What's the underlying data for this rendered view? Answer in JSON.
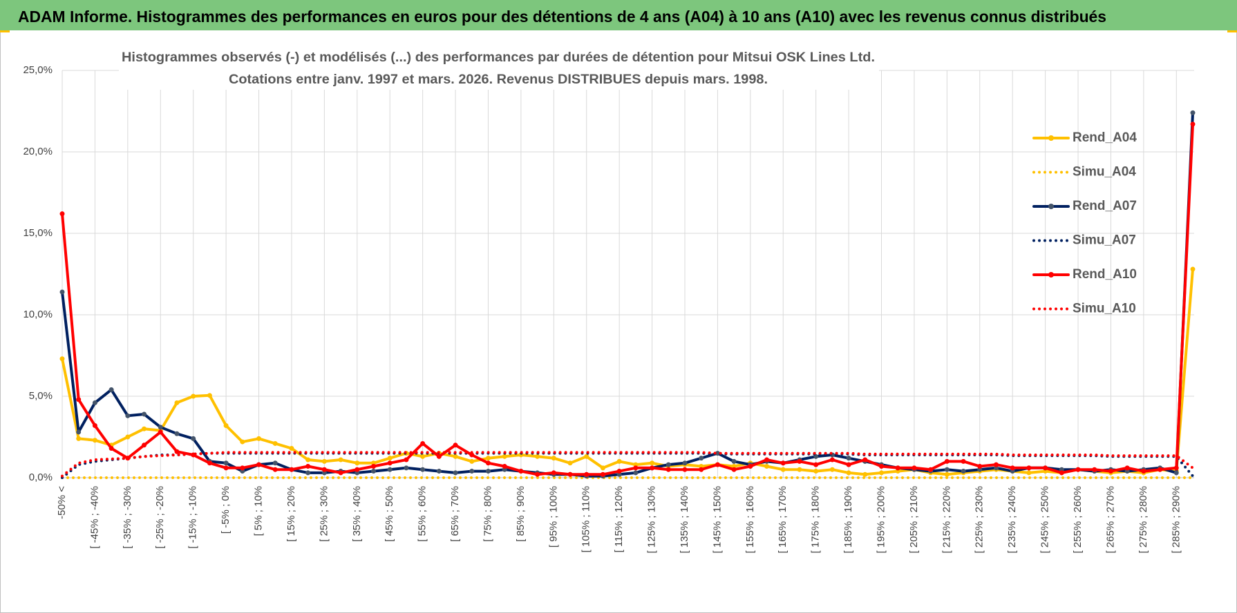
{
  "chart_data": {
    "type": "line",
    "page_title": "ADAM Informe. Histogrammes des performances en euros pour des détentions de 4 ans (A04) à 10 ans (A10) avec les revenus connus distribués",
    "title": "Histogrammes observés (-) et modélisés (...) des performances par durées de détention pour Mitsui OSK Lines Ltd.",
    "subtitle": "Cotations entre janv. 1997 et mars. 2026.  Revenus DISTRIBUES depuis mars. 1998.",
    "categories": [
      "-50% <",
      null,
      "[ -45% ; -40%",
      null,
      "[ -35% ; -30%",
      null,
      "[ -25% ; -20%",
      null,
      "[ -15% ; -10%",
      null,
      "[ -5% ; 0%",
      null,
      "[ 5% ; 10%",
      null,
      "[ 15% ; 20%",
      null,
      "[ 25% ; 30%",
      null,
      "[ 35% ; 40%",
      null,
      "[ 45% ; 50%",
      null,
      "[ 55% ; 60%",
      null,
      "[ 65% ; 70%",
      null,
      "[ 75% ; 80%",
      null,
      "[ 85% ; 90%",
      null,
      "[ 95% ; 100%",
      null,
      "[ 105% ; 110%",
      null,
      "[ 115% ; 120%",
      null,
      "[ 125% ; 130%",
      null,
      "[ 135% ; 140%",
      null,
      "[ 145% ; 150%",
      null,
      "[ 155% ; 160%",
      null,
      "[ 165% ; 170%",
      null,
      "[ 175% ; 180%",
      null,
      "[ 185% ; 190%",
      null,
      "[ 195% ; 200%",
      null,
      "[ 205% ; 210%",
      null,
      "[ 215% ; 220%",
      null,
      "[ 225% ; 230%",
      null,
      "[ 235% ; 240%",
      null,
      "[ 245% ; 250%",
      null,
      "[ 255% ; 260%",
      null,
      "[ 265% ; 270%",
      null,
      "[ 275% ; 280%",
      null,
      "[ 285% ; 290%",
      null
    ],
    "series": [
      {
        "name": "Rend_A04",
        "color": "#ffc000",
        "line_style": "solid",
        "markers": true,
        "values": [
          7.3,
          2.4,
          2.3,
          2.0,
          2.5,
          3.0,
          2.9,
          4.6,
          5.0,
          5.05,
          3.2,
          2.2,
          2.4,
          2.1,
          1.8,
          1.1,
          1.0,
          1.1,
          0.9,
          0.9,
          1.2,
          1.5,
          1.3,
          1.5,
          1.3,
          1.0,
          1.2,
          1.3,
          1.4,
          1.3,
          1.2,
          0.9,
          1.3,
          0.6,
          1.0,
          0.8,
          0.9,
          0.7,
          0.8,
          0.7,
          0.8,
          0.7,
          0.9,
          0.7,
          0.5,
          0.5,
          0.4,
          0.5,
          0.3,
          0.2,
          0.3,
          0.4,
          0.5,
          0.3,
          0.2,
          0.3,
          0.4,
          0.5,
          0.4,
          0.3,
          0.4,
          0.3,
          0.5,
          0.4,
          0.3,
          0.4,
          0.3,
          0.5,
          0.4,
          12.8
        ]
      },
      {
        "name": "Simu_A04",
        "color": "#ffc000",
        "line_style": "dotted",
        "markers": false,
        "values": [
          0,
          0,
          0,
          0,
          0,
          0,
          0,
          0,
          0,
          0,
          0,
          0,
          0,
          0,
          0,
          0,
          0,
          0,
          0,
          0,
          0,
          0,
          0,
          0,
          0,
          0,
          0,
          0,
          0,
          0,
          0,
          0,
          0,
          0,
          0,
          0,
          0,
          0,
          0,
          0,
          0,
          0,
          0,
          0,
          0,
          0,
          0,
          0,
          0,
          0,
          0,
          0,
          0,
          0,
          0,
          0,
          0,
          0,
          0,
          0,
          0,
          0,
          0,
          0,
          0,
          0,
          0,
          0,
          0,
          0
        ]
      },
      {
        "name": "Rend_A07",
        "color": "#002060",
        "line_style": "solid",
        "markers": true,
        "values": [
          11.4,
          2.8,
          4.6,
          5.4,
          3.8,
          3.9,
          3.1,
          2.7,
          2.4,
          1.0,
          0.9,
          0.4,
          0.8,
          0.9,
          0.5,
          0.3,
          0.3,
          0.4,
          0.3,
          0.4,
          0.5,
          0.6,
          0.5,
          0.4,
          0.3,
          0.4,
          0.4,
          0.5,
          0.4,
          0.3,
          0.2,
          0.2,
          0.1,
          0.1,
          0.2,
          0.3,
          0.6,
          0.8,
          0.9,
          1.2,
          1.5,
          1.0,
          0.8,
          1.0,
          0.9,
          1.1,
          1.3,
          1.4,
          1.2,
          1.0,
          0.8,
          0.6,
          0.5,
          0.4,
          0.5,
          0.4,
          0.5,
          0.6,
          0.4,
          0.6,
          0.6,
          0.5,
          0.5,
          0.4,
          0.5,
          0.4,
          0.5,
          0.6,
          0.3,
          22.4
        ]
      },
      {
        "name": "Simu_A07",
        "color": "#002060",
        "line_style": "dotted",
        "markers": false,
        "values": [
          0,
          0.8,
          1.0,
          1.1,
          1.2,
          1.3,
          1.4,
          1.4,
          1.45,
          1.5,
          1.5,
          1.5,
          1.5,
          1.5,
          1.5,
          1.5,
          1.5,
          1.5,
          1.5,
          1.5,
          1.5,
          1.5,
          1.5,
          1.5,
          1.5,
          1.5,
          1.5,
          1.5,
          1.5,
          1.5,
          1.5,
          1.5,
          1.5,
          1.5,
          1.5,
          1.5,
          1.5,
          1.5,
          1.5,
          1.5,
          1.45,
          1.45,
          1.45,
          1.45,
          1.45,
          1.45,
          1.45,
          1.45,
          1.45,
          1.4,
          1.4,
          1.4,
          1.4,
          1.4,
          1.4,
          1.4,
          1.4,
          1.4,
          1.35,
          1.35,
          1.35,
          1.35,
          1.35,
          1.35,
          1.3,
          1.3,
          1.3,
          1.3,
          1.3,
          0.1
        ]
      },
      {
        "name": "Rend_A10",
        "color": "#ff0000",
        "line_style": "solid",
        "markers": true,
        "values": [
          16.2,
          4.8,
          3.2,
          1.8,
          1.2,
          2.0,
          2.8,
          1.6,
          1.4,
          0.9,
          0.6,
          0.6,
          0.8,
          0.5,
          0.5,
          0.7,
          0.5,
          0.3,
          0.5,
          0.7,
          0.9,
          1.1,
          2.1,
          1.3,
          2.0,
          1.4,
          0.9,
          0.7,
          0.4,
          0.2,
          0.3,
          0.2,
          0.2,
          0.2,
          0.4,
          0.6,
          0.6,
          0.5,
          0.5,
          0.5,
          0.8,
          0.5,
          0.7,
          1.1,
          0.9,
          1.0,
          0.8,
          1.1,
          0.8,
          1.1,
          0.7,
          0.6,
          0.6,
          0.5,
          1.0,
          1.0,
          0.7,
          0.8,
          0.6,
          0.6,
          0.6,
          0.3,
          0.5,
          0.5,
          0.4,
          0.6,
          0.4,
          0.5,
          0.6,
          21.7
        ]
      },
      {
        "name": "Simu_A10",
        "color": "#ff0000",
        "line_style": "dotted",
        "markers": false,
        "values": [
          0.1,
          0.9,
          1.1,
          1.15,
          1.2,
          1.3,
          1.35,
          1.4,
          1.45,
          1.5,
          1.55,
          1.55,
          1.55,
          1.55,
          1.55,
          1.55,
          1.55,
          1.55,
          1.55,
          1.55,
          1.55,
          1.55,
          1.55,
          1.55,
          1.55,
          1.55,
          1.55,
          1.55,
          1.55,
          1.55,
          1.55,
          1.55,
          1.55,
          1.55,
          1.55,
          1.55,
          1.55,
          1.55,
          1.55,
          1.55,
          1.5,
          1.5,
          1.5,
          1.5,
          1.5,
          1.5,
          1.5,
          1.5,
          1.5,
          1.45,
          1.45,
          1.45,
          1.45,
          1.45,
          1.45,
          1.45,
          1.45,
          1.45,
          1.4,
          1.4,
          1.4,
          1.4,
          1.4,
          1.4,
          1.35,
          1.35,
          1.35,
          1.35,
          1.35,
          0.6
        ]
      }
    ],
    "ylim": [
      0,
      25
    ],
    "yticks": [
      {
        "value": 0,
        "label": "0,0%"
      },
      {
        "value": 5,
        "label": "5,0%"
      },
      {
        "value": 10,
        "label": "10,0%"
      },
      {
        "value": 15,
        "label": "15,0%"
      },
      {
        "value": 20,
        "label": "20,0%"
      },
      {
        "value": 25,
        "label": "25,0%"
      }
    ],
    "grid": true,
    "legend": "right"
  }
}
